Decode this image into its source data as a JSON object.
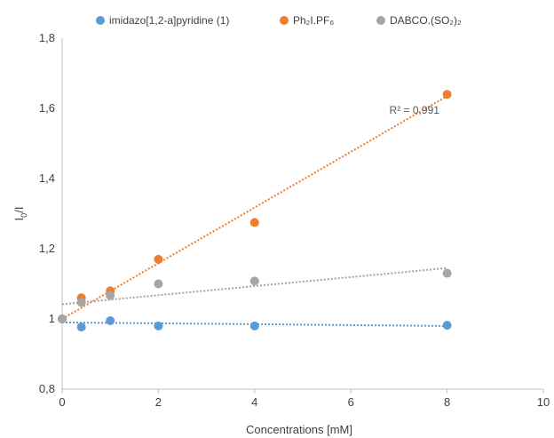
{
  "chart_data": {
    "type": "scatter",
    "title": "",
    "xlabel": "Concentrations [mM]",
    "ylabel": "I0/I",
    "xlim": [
      0,
      10
    ],
    "ylim": [
      0.8,
      1.8
    ],
    "xticks": [
      0,
      2,
      4,
      6,
      8,
      10
    ],
    "yticks": [
      0.8,
      1.0,
      1.2,
      1.4,
      1.6,
      1.8
    ],
    "xtick_labels": [
      "0",
      "2",
      "4",
      "6",
      "8",
      "10"
    ],
    "ytick_labels": [
      "0,8",
      "1",
      "1,2",
      "1,4",
      "1,6",
      "1,8"
    ],
    "grid": false,
    "legend_position": "top",
    "series": [
      {
        "name": "imidazo[1,2-a]pyridine (1)",
        "color": "#5b9bd5",
        "x": [
          0,
          0.4,
          1,
          2,
          4,
          8
        ],
        "y": [
          1.0,
          0.977,
          0.995,
          0.98,
          0.98,
          0.982
        ],
        "trendline": {
          "x": [
            0,
            8
          ],
          "y": [
            0.99,
            0.98
          ]
        }
      },
      {
        "name": "Ph₂I.PF₆",
        "color": "#ed7d31",
        "x": [
          0,
          0.4,
          1,
          2,
          4,
          8
        ],
        "y": [
          1.0,
          1.06,
          1.08,
          1.17,
          1.275,
          1.64
        ],
        "trendline": {
          "x": [
            0,
            8
          ],
          "y": [
            1.0,
            1.635
          ]
        }
      },
      {
        "name": "DABCO.(SO₂)₂",
        "color": "#a5a5a5",
        "x": [
          0,
          0.4,
          1,
          2,
          4,
          8
        ],
        "y": [
          1.0,
          1.047,
          1.067,
          1.1,
          1.108,
          1.13
        ],
        "trendline": {
          "x": [
            0,
            8
          ],
          "y": [
            1.042,
            1.145
          ]
        }
      }
    ],
    "annotations": [
      {
        "text": "R² = 0,991",
        "x": 6.8,
        "y": 1.585
      }
    ]
  }
}
